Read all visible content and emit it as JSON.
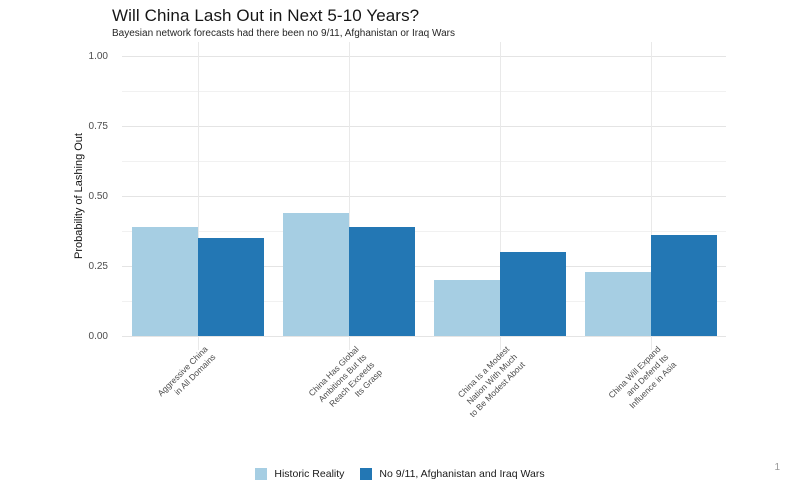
{
  "page_number": "1",
  "chart_data": {
    "type": "bar",
    "title": "Will China Lash Out in Next 5-10 Years?",
    "subtitle": "Bayesian network forecasts had there been no 9/11, Afghanistan or Iraq Wars",
    "ylabel": "Probability of Lashing Out",
    "xlabel": "",
    "ylim": [
      0,
      1
    ],
    "ytick_labels": [
      "0.00",
      "0.25",
      "0.50",
      "0.75",
      "1.00"
    ],
    "minor_gridlines": [
      0.125,
      0.375,
      0.625,
      0.875
    ],
    "grid": "horizontal major+minor, vertical at category centers",
    "legend_position": "bottom",
    "background": "#ffffff",
    "gridline_color": "#e4e4e4",
    "categories": [
      "Aggressive China\nin All Domains",
      "China Has Global\nAmbitions But Its\nReach Exceeds\nIts Grasp",
      "China Is a Modest\nNation With Much\nto Be Modest About",
      "China Will Expand\nand Defend Its\nInfluence in Asia"
    ],
    "series": [
      {
        "name": "Historic Reality",
        "color": "#a6cee3",
        "values": [
          0.39,
          0.44,
          0.2,
          0.23
        ]
      },
      {
        "name": "No 9/11, Afghanistan and Iraq Wars",
        "color": "#2377b4",
        "values": [
          0.35,
          0.39,
          0.3,
          0.36
        ]
      }
    ]
  }
}
